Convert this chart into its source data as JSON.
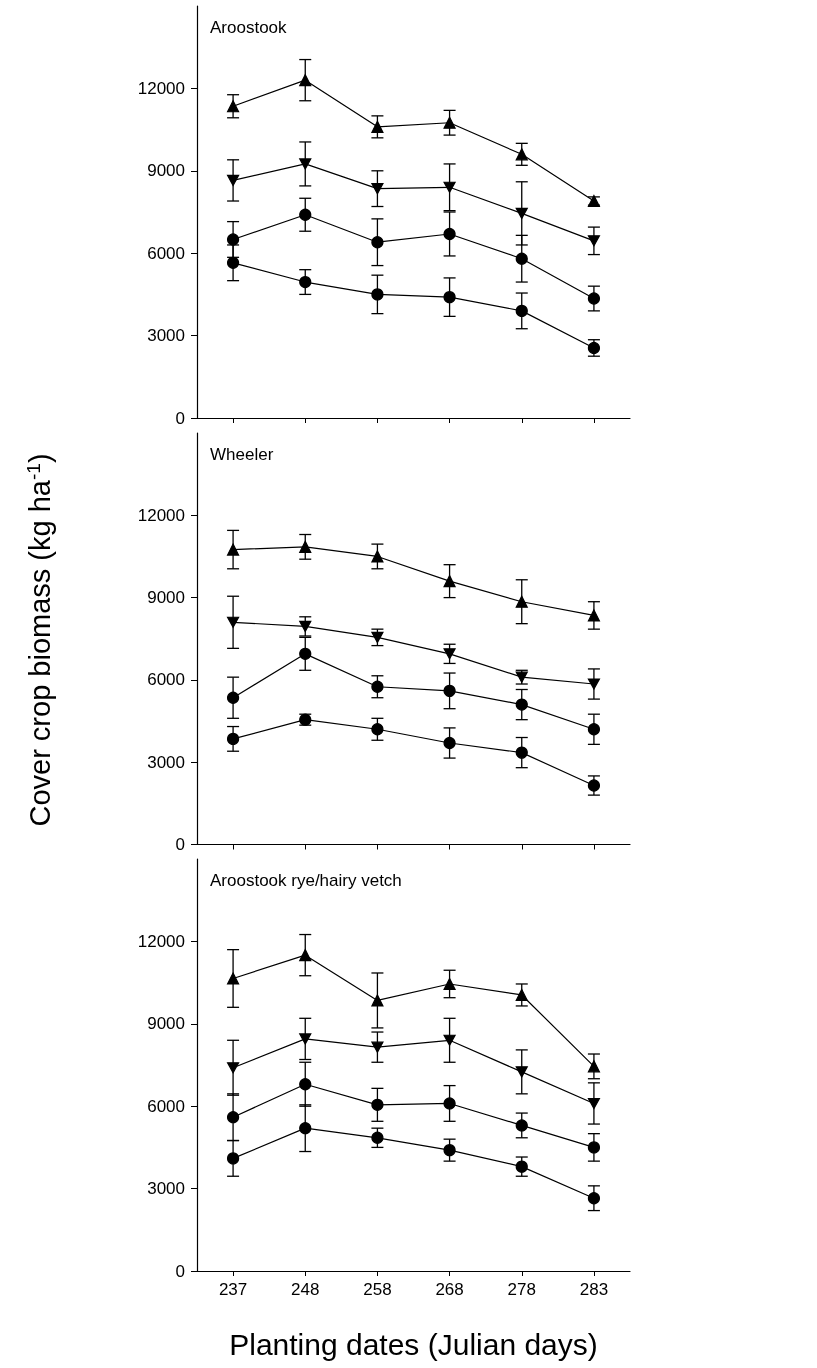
{
  "chart_data": [
    {
      "type": "line",
      "title": "Aroostook",
      "categories": [
        "237",
        "248",
        "258",
        "268",
        "278",
        "283"
      ],
      "ylim": [
        0,
        15000
      ],
      "yticks": [
        0,
        3000,
        6000,
        9000,
        12000
      ],
      "tick_labels": "y",
      "series": [
        {
          "color": "#000000",
          "marker": "triangle",
          "values": [
            11350,
            12300,
            10600,
            10750,
            9600,
            7900
          ],
          "errors": [
            420,
            750,
            400,
            450,
            400,
            150
          ]
        },
        {
          "color": "#000000",
          "marker": "triangle-down",
          "values": [
            8650,
            9250,
            8350,
            8400,
            7450,
            6450
          ],
          "errors": [
            750,
            800,
            650,
            850,
            1150,
            500
          ]
        },
        {
          "color": "#000000",
          "marker": "circle",
          "values": [
            6500,
            7400,
            6400,
            6700,
            5800,
            4350
          ],
          "errors": [
            650,
            600,
            850,
            800,
            850,
            450
          ]
        },
        {
          "color": "#000000",
          "marker": "circle",
          "values": [
            5650,
            4950,
            4500,
            4400,
            3900,
            2550
          ],
          "errors": [
            650,
            450,
            700,
            700,
            650,
            300
          ]
        }
      ]
    },
    {
      "type": "line",
      "title": "Wheeler",
      "ylabel": "Cover crop biomass (kg ha$^{-1}$)",
      "categories": [
        "237",
        "248",
        "258",
        "268",
        "278",
        "283"
      ],
      "ylim": [
        0,
        15000
      ],
      "yticks": [
        0,
        3000,
        6000,
        9000,
        12000
      ],
      "tick_labels": "y",
      "series": [
        {
          "color": "#000000",
          "marker": "triangle",
          "values": [
            10750,
            10850,
            10500,
            9600,
            8850,
            8350
          ],
          "errors": [
            700,
            450,
            450,
            600,
            800,
            500
          ]
        },
        {
          "color": "#000000",
          "marker": "triangle-down",
          "values": [
            8100,
            7950,
            7550,
            6950,
            6100,
            5850
          ],
          "errors": [
            950,
            350,
            300,
            350,
            250,
            550
          ]
        },
        {
          "color": "#000000",
          "marker": "circle",
          "values": [
            5350,
            6950,
            5750,
            5600,
            5100,
            4200
          ],
          "errors": [
            750,
            600,
            400,
            650,
            550,
            550
          ]
        },
        {
          "color": "#000000",
          "marker": "circle",
          "values": [
            3850,
            4550,
            4200,
            3700,
            3350,
            2150
          ],
          "errors": [
            450,
            200,
            400,
            550,
            550,
            350
          ]
        }
      ]
    },
    {
      "type": "line",
      "title": "Aroostook rye/hairy vetch",
      "xlabel": "Planting dates (Julian days)",
      "categories": [
        "237",
        "248",
        "258",
        "268",
        "278",
        "283"
      ],
      "ylim": [
        0,
        15000
      ],
      "yticks": [
        0,
        3000,
        6000,
        9000,
        12000
      ],
      "series": [
        {
          "color": "#000000",
          "marker": "triangle",
          "values": [
            10650,
            11500,
            9850,
            10450,
            10050,
            7450
          ],
          "errors": [
            1050,
            750,
            1000,
            500,
            400,
            450
          ]
        },
        {
          "color": "#000000",
          "marker": "triangle-down",
          "values": [
            7400,
            8450,
            8150,
            8400,
            7250,
            6100
          ],
          "errors": [
            1000,
            750,
            550,
            800,
            800,
            750
          ]
        },
        {
          "color": "#000000",
          "marker": "circle",
          "values": [
            5600,
            6800,
            6050,
            6100,
            5300,
            4500
          ],
          "errors": [
            850,
            800,
            600,
            650,
            450,
            500
          ]
        },
        {
          "color": "#000000",
          "marker": "circle",
          "values": [
            4100,
            5200,
            4850,
            4400,
            3800,
            2650
          ],
          "errors": [
            650,
            850,
            350,
            400,
            350,
            450
          ]
        }
      ]
    }
  ]
}
